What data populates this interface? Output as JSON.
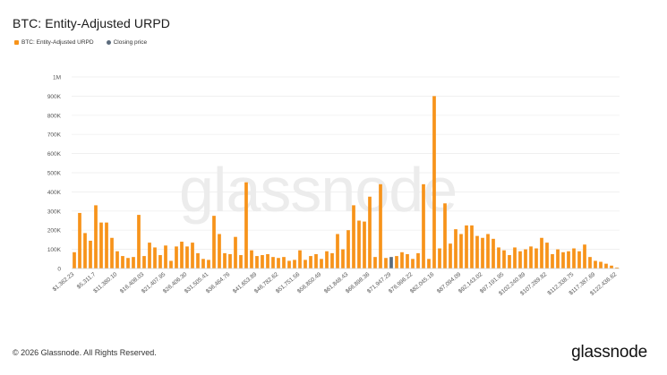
{
  "header": {
    "title": "BTC: Entity-Adjusted URPD"
  },
  "footer": {
    "copyright": "© 2026 Glassnode. All Rights Reserved.",
    "brand": "glassnode"
  },
  "watermark": "glassnode",
  "chart_data": {
    "type": "bar",
    "title": "BTC: Entity-Adjusted URPD",
    "xlabel": "",
    "ylabel": "",
    "ylim": [
      0,
      1000000
    ],
    "yticks": [
      0,
      100000,
      200000,
      300000,
      400000,
      500000,
      600000,
      700000,
      800000,
      900000,
      1000000
    ],
    "ytick_labels": [
      "0",
      "100K",
      "200K",
      "300K",
      "400K",
      "500K",
      "600K",
      "700K",
      "800K",
      "900K",
      "1M"
    ],
    "grid": true,
    "legend_position": "top-left",
    "series": [
      {
        "name": "BTC: Entity-Adjusted URPD",
        "color": "#f7931a"
      },
      {
        "name": "Closing price",
        "color": "#5b6b7c"
      }
    ],
    "highlight_color": "#5b6b7c",
    "highlight_index": 59,
    "xtick_labels": [
      "$1,362.23",
      "$5,311.7",
      "$11,380.10",
      "$16,408.03",
      "$21,407.95",
      "$26,406.30",
      "$31,505.41",
      "$36,464.76",
      "$41,653.89",
      "$46,782.62",
      "$51,751.56",
      "$56,850.49",
      "$61,848.43",
      "$66,898.36",
      "$71,947.29",
      "$76,996.22",
      "$82,045.16",
      "$87,094.09",
      "$92,143.02",
      "$97,191.95",
      "$102,240.89",
      "$107,289.82",
      "$112,338.75",
      "$117,387.69",
      "$122,436.62"
    ],
    "values": [
      85000,
      290000,
      185000,
      145000,
      330000,
      240000,
      240000,
      160000,
      90000,
      65000,
      55000,
      60000,
      280000,
      65000,
      135000,
      110000,
      70000,
      120000,
      40000,
      115000,
      140000,
      115000,
      135000,
      80000,
      50000,
      45000,
      275000,
      180000,
      80000,
      75000,
      165000,
      70000,
      450000,
      95000,
      65000,
      70000,
      75000,
      60000,
      55000,
      60000,
      40000,
      45000,
      95000,
      45000,
      65000,
      75000,
      50000,
      90000,
      80000,
      180000,
      100000,
      200000,
      330000,
      250000,
      245000,
      375000,
      60000,
      440000,
      55000,
      60000,
      65000,
      85000,
      75000,
      50000,
      80000,
      440000,
      50000,
      900000,
      105000,
      340000,
      130000,
      205000,
      180000,
      225000,
      225000,
      170000,
      160000,
      180000,
      155000,
      110000,
      95000,
      70000,
      110000,
      90000,
      100000,
      115000,
      105000,
      160000,
      135000,
      75000,
      100000,
      85000,
      90000,
      105000,
      90000,
      125000,
      60000,
      40000,
      35000,
      25000,
      15000,
      5000
    ]
  }
}
